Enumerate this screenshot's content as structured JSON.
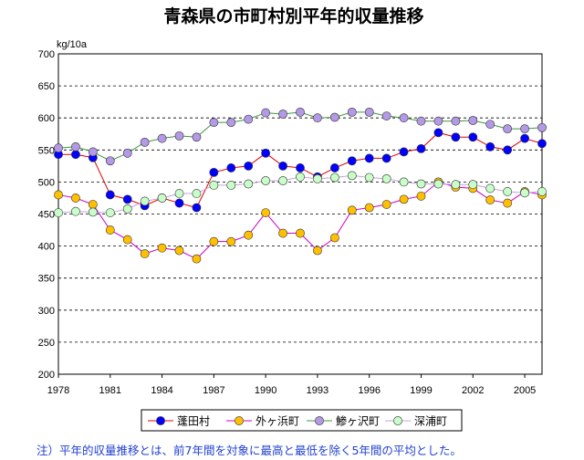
{
  "chart_data": {
    "type": "line",
    "title": "青森県の市町村別平年的収量推移",
    "ylabel": "kg/10a",
    "xlabel": "",
    "ylim": [
      200,
      700
    ],
    "yticks": [
      "200",
      "250",
      "300",
      "350",
      "400",
      "450",
      "500",
      "550",
      "600",
      "650",
      "700"
    ],
    "xlim": [
      1978,
      2006
    ],
    "xticks": [
      "1978",
      "1981",
      "1984",
      "1987",
      "1990",
      "1993",
      "1996",
      "1999",
      "2002",
      "2005"
    ],
    "x": [
      1978,
      1979,
      1980,
      1981,
      1982,
      1983,
      1984,
      1985,
      1986,
      1987,
      1988,
      1989,
      1990,
      1991,
      1992,
      1993,
      1994,
      1995,
      1996,
      1997,
      1998,
      1999,
      2000,
      2001,
      2002,
      2003,
      2004,
      2005,
      2006
    ],
    "series": [
      {
        "name": "蓬田村",
        "color": "#0000ff",
        "line_color": "#e00000",
        "values": [
          543,
          543,
          538,
          480,
          473,
          463,
          475,
          467,
          460,
          515,
          522,
          525,
          545,
          525,
          522,
          508,
          522,
          533,
          537,
          537,
          547,
          552,
          577,
          570,
          570,
          555,
          550,
          568,
          560
        ]
      },
      {
        "name": "外ヶ浜町",
        "color": "#ffc000",
        "line_color": "#cc00cc",
        "values": [
          480,
          475,
          465,
          425,
          410,
          388,
          397,
          393,
          380,
          407,
          407,
          417,
          452,
          420,
          420,
          393,
          413,
          456,
          460,
          465,
          473,
          478,
          500,
          492,
          490,
          472,
          467,
          485,
          480
        ]
      },
      {
        "name": "鯵ヶ沢町",
        "color": "#b399e6",
        "line_color": "#3a9a3a",
        "values": [
          553,
          555,
          547,
          533,
          545,
          562,
          568,
          572,
          570,
          593,
          593,
          598,
          608,
          606,
          609,
          600,
          601,
          609,
          609,
          603,
          600,
          595,
          595,
          595,
          596,
          590,
          583,
          583,
          585
        ]
      },
      {
        "name": "深浦町",
        "color": "#c8ffc8",
        "line_color": "#c8a0e0",
        "values": [
          452,
          454,
          453,
          452,
          458,
          470,
          475,
          482,
          482,
          495,
          495,
          497,
          502,
          502,
          508,
          505,
          507,
          510,
          507,
          505,
          500,
          497,
          497,
          496,
          496,
          490,
          485,
          483,
          485
        ]
      }
    ]
  },
  "note": "注）平年的収量推移とは、前7年間を対象に最高と最低を除く5年間の平均とした。"
}
